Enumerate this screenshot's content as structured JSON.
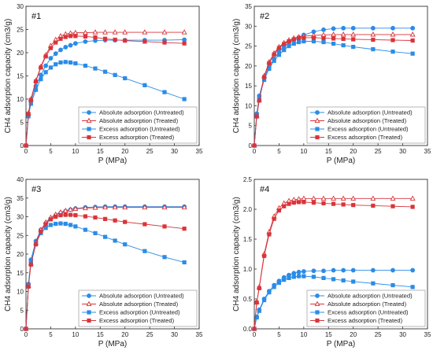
{
  "colors": {
    "untreated": "#2b8ce6",
    "treated": "#d9343a"
  },
  "legend": [
    {
      "label": "Absolute adsorption (Untreated)",
      "marker": "circle",
      "color": "#2b8ce6"
    },
    {
      "label": "Absolute adsorption (Treated)",
      "marker": "triangle",
      "color": "#d9343a"
    },
    {
      "label": "Excess adsorption (Untreated)",
      "marker": "square",
      "color": "#2b8ce6"
    },
    {
      "label": "Excess adsorption (Treated)",
      "marker": "square",
      "color": "#d9343a"
    }
  ],
  "chart_data": [
    {
      "type": "line",
      "title": "#1",
      "xlabel": "P (MPa)",
      "ylabel": "CH4 adsorption capacity (cm3/g)",
      "xlim": [
        0,
        35
      ],
      "ylim": [
        0,
        30
      ],
      "xticks": [
        0,
        5,
        10,
        15,
        20,
        25,
        30,
        35
      ],
      "yticks": [
        0,
        5,
        10,
        15,
        20,
        25,
        30
      ],
      "x": [
        0,
        0.5,
        1,
        2,
        3,
        4,
        5,
        6,
        7,
        8,
        9,
        10,
        12,
        14,
        16,
        18,
        20,
        24,
        28,
        32
      ],
      "series": [
        {
          "name": "Absolute adsorption (Untreated)",
          "marker": "circle",
          "values": [
            0,
            6.5,
            9.5,
            12.8,
            15.2,
            17.2,
            18.8,
            19.8,
            20.6,
            21.2,
            21.6,
            22.0,
            22.4,
            22.6,
            22.7,
            22.7,
            22.7,
            22.7,
            22.7,
            22.8
          ]
        },
        {
          "name": "Absolute adsorption (Treated)",
          "marker": "triangle",
          "values": [
            0,
            7.0,
            10.0,
            14.0,
            17.0,
            19.5,
            21.5,
            22.8,
            23.6,
            24.0,
            24.2,
            24.3,
            24.3,
            24.4,
            24.4,
            24.4,
            24.4,
            24.4,
            24.4,
            24.4
          ]
        },
        {
          "name": "Excess adsorption (Untreated)",
          "marker": "square",
          "values": [
            0,
            6.3,
            9.0,
            12.0,
            14.3,
            15.8,
            16.8,
            17.5,
            17.9,
            18.0,
            17.9,
            17.7,
            17.2,
            16.6,
            15.9,
            15.2,
            14.5,
            13.0,
            11.5,
            10.0
          ]
        },
        {
          "name": "Excess adsorption (Treated)",
          "marker": "square",
          "values": [
            0,
            6.8,
            9.8,
            13.8,
            16.8,
            19.2,
            21.0,
            22.2,
            23.0,
            23.4,
            23.6,
            23.6,
            23.5,
            23.3,
            23.0,
            22.8,
            22.6,
            22.4,
            22.2,
            22.0
          ]
        }
      ]
    },
    {
      "type": "line",
      "title": "#2",
      "xlabel": "P (MPa)",
      "ylabel": "CH4 adsorption capacity (cm3/g)",
      "xlim": [
        0,
        35
      ],
      "ylim": [
        0,
        35
      ],
      "xticks": [
        0,
        5,
        10,
        15,
        20,
        25,
        30,
        35
      ],
      "yticks": [
        0,
        5,
        10,
        15,
        20,
        25,
        30,
        35
      ],
      "x": [
        0,
        0.5,
        1,
        2,
        3,
        4,
        5,
        6,
        7,
        8,
        9,
        10,
        12,
        14,
        16,
        18,
        20,
        24,
        28,
        32
      ],
      "series": [
        {
          "name": "Absolute adsorption (Untreated)",
          "marker": "circle",
          "values": [
            0,
            8.0,
            12.5,
            17.0,
            19.8,
            21.8,
            23.5,
            24.8,
            25.8,
            26.6,
            27.2,
            27.8,
            28.6,
            29.1,
            29.4,
            29.5,
            29.5,
            29.5,
            29.5,
            29.5
          ]
        },
        {
          "name": "Absolute adsorption (Treated)",
          "marker": "triangle",
          "values": [
            0,
            7.5,
            11.5,
            17.5,
            21.0,
            23.2,
            24.8,
            25.8,
            26.5,
            27.0,
            27.3,
            27.5,
            27.7,
            27.8,
            27.9,
            27.9,
            27.9,
            27.9,
            27.9,
            27.9
          ]
        },
        {
          "name": "Excess adsorption (Untreated)",
          "marker": "square",
          "values": [
            0,
            7.8,
            12.0,
            16.5,
            19.3,
            21.3,
            22.8,
            24.0,
            25.0,
            25.6,
            26.0,
            26.2,
            26.2,
            26.0,
            25.6,
            25.2,
            24.8,
            24.2,
            23.6,
            23.1
          ]
        },
        {
          "name": "Excess adsorption (Treated)",
          "marker": "square",
          "values": [
            0,
            7.3,
            11.3,
            17.2,
            20.7,
            22.9,
            24.5,
            25.5,
            26.2,
            26.7,
            27.0,
            27.1,
            27.1,
            27.0,
            26.9,
            26.8,
            26.7,
            26.6,
            26.5,
            26.4
          ]
        }
      ]
    },
    {
      "type": "line",
      "title": "#3",
      "xlabel": "P (MPa)",
      "ylabel": "CH4 adsorption capacity (cm3/g)",
      "xlim": [
        0,
        35
      ],
      "ylim": [
        0,
        40
      ],
      "xticks": [
        0,
        5,
        10,
        15,
        20,
        25,
        30,
        35
      ],
      "yticks": [
        0,
        5,
        10,
        15,
        20,
        25,
        30,
        35,
        40
      ],
      "x": [
        0,
        0.5,
        1,
        2,
        3,
        4,
        5,
        6,
        7,
        8,
        9,
        10,
        12,
        14,
        16,
        18,
        20,
        24,
        28,
        32
      ],
      "series": [
        {
          "name": "Absolute adsorption (Untreated)",
          "marker": "circle",
          "values": [
            0,
            12.0,
            18.5,
            23.5,
            26.5,
            28.3,
            29.5,
            30.4,
            31.0,
            31.5,
            31.9,
            32.2,
            32.5,
            32.6,
            32.7,
            32.7,
            32.7,
            32.7,
            32.7,
            32.7
          ]
        },
        {
          "name": "Absolute adsorption (Treated)",
          "marker": "triangle",
          "values": [
            0,
            11.5,
            17.5,
            23.0,
            26.5,
            28.5,
            29.8,
            30.6,
            31.2,
            31.6,
            31.9,
            32.1,
            32.3,
            32.4,
            32.5,
            32.5,
            32.5,
            32.5,
            32.5,
            32.5
          ]
        },
        {
          "name": "Excess adsorption (Untreated)",
          "marker": "square",
          "values": [
            0,
            11.8,
            18.0,
            22.8,
            25.6,
            27.0,
            27.8,
            28.1,
            28.2,
            28.1,
            27.8,
            27.4,
            26.5,
            25.6,
            24.6,
            23.6,
            22.6,
            20.8,
            19.2,
            17.8
          ]
        },
        {
          "name": "Excess adsorption (Treated)",
          "marker": "square",
          "values": [
            0,
            11.3,
            17.2,
            22.6,
            26.0,
            28.0,
            29.3,
            30.0,
            30.4,
            30.5,
            30.5,
            30.4,
            30.1,
            29.8,
            29.4,
            29.0,
            28.6,
            28.0,
            27.4,
            26.8
          ]
        }
      ]
    },
    {
      "type": "line",
      "title": "#4",
      "xlabel": "P (MPa)",
      "ylabel": "CH4 adsorption capacity (cm3/g)",
      "xlim": [
        0,
        35
      ],
      "ylim": [
        0,
        2.5
      ],
      "xticks": [
        0,
        5,
        10,
        15,
        20,
        25,
        30,
        35
      ],
      "yticks": [
        0.0,
        0.5,
        1.0,
        1.5,
        2.0,
        2.5
      ],
      "x": [
        0,
        0.5,
        1,
        2,
        3,
        4,
        5,
        6,
        7,
        8,
        9,
        10,
        12,
        14,
        16,
        18,
        20,
        24,
        28,
        32
      ],
      "series": [
        {
          "name": "Absolute adsorption (Untreated)",
          "marker": "circle",
          "values": [
            0,
            0.2,
            0.32,
            0.5,
            0.63,
            0.73,
            0.8,
            0.86,
            0.9,
            0.93,
            0.95,
            0.96,
            0.97,
            0.97,
            0.98,
            0.98,
            0.98,
            0.98,
            0.98,
            0.98
          ]
        },
        {
          "name": "Absolute adsorption (Treated)",
          "marker": "triangle",
          "values": [
            0,
            0.45,
            0.7,
            1.25,
            1.62,
            1.88,
            2.02,
            2.1,
            2.14,
            2.16,
            2.17,
            2.18,
            2.18,
            2.18,
            2.18,
            2.18,
            2.18,
            2.18,
            2.18,
            2.18
          ]
        },
        {
          "name": "Excess adsorption (Untreated)",
          "marker": "square",
          "values": [
            0,
            0.19,
            0.3,
            0.48,
            0.61,
            0.7,
            0.77,
            0.82,
            0.85,
            0.87,
            0.88,
            0.88,
            0.87,
            0.85,
            0.83,
            0.81,
            0.79,
            0.76,
            0.73,
            0.7
          ]
        },
        {
          "name": "Excess adsorption (Treated)",
          "marker": "square",
          "values": [
            0,
            0.44,
            0.68,
            1.22,
            1.58,
            1.84,
            1.98,
            2.05,
            2.09,
            2.11,
            2.12,
            2.12,
            2.11,
            2.1,
            2.09,
            2.08,
            2.07,
            2.06,
            2.05,
            2.04
          ]
        }
      ]
    }
  ]
}
